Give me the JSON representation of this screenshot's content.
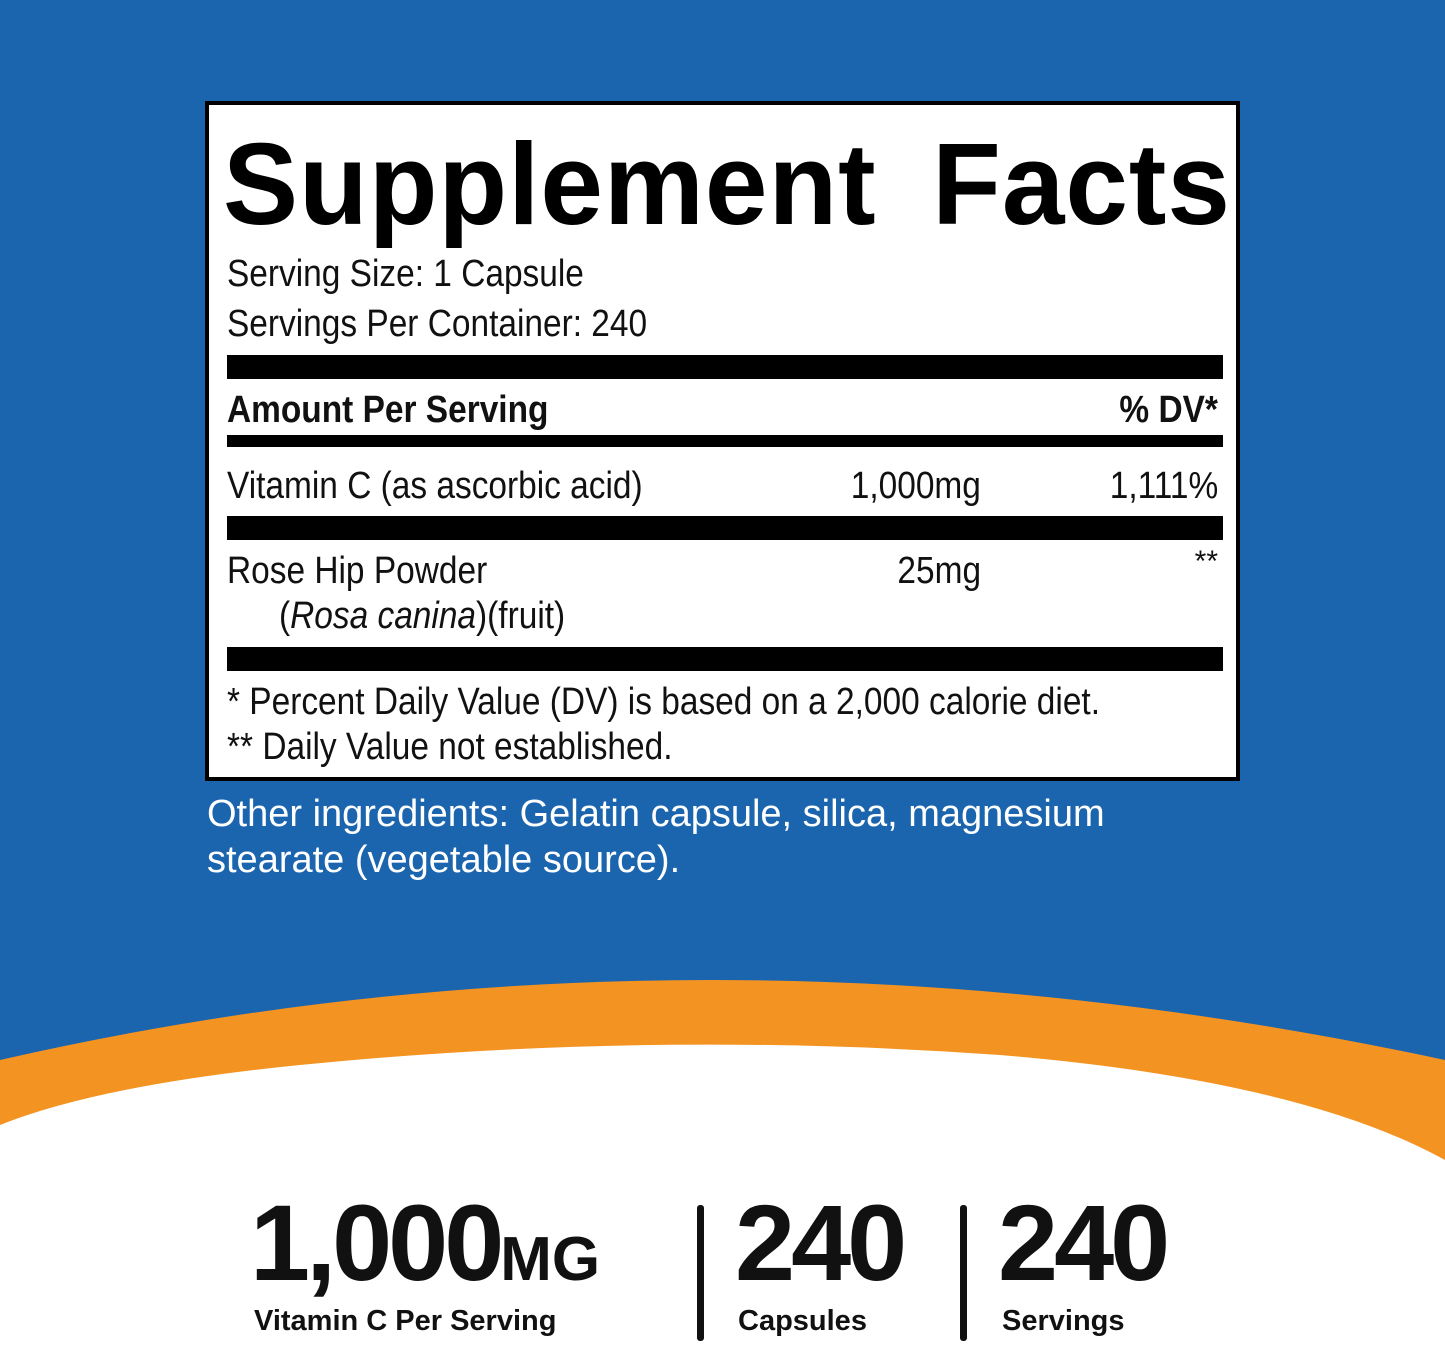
{
  "colors": {
    "background": "#1b64ae",
    "accent": "#f39322",
    "panel": "#ffffff",
    "text": "#111111"
  },
  "facts": {
    "title": "Supplement Facts",
    "serving_size": "Serving Size: 1 Capsule",
    "servings_per_container": "Servings Per Container: 240",
    "header_amount": "Amount Per Serving",
    "header_dv": "% DV*",
    "rows": [
      {
        "name": "Vitamin C (as ascorbic acid)",
        "amount": "1,000mg",
        "dv": "1,111%"
      },
      {
        "name": "Rose Hip Powder",
        "sub_open": "(",
        "sub_italic": "Rosa canina",
        "sub_close": ")(fruit)",
        "amount": "25mg",
        "dv": "**"
      }
    ],
    "footnote1": "* Percent Daily Value (DV) is based on a 2,000 calorie diet.",
    "footnote2": "** Daily Value not established."
  },
  "other_ingredients": {
    "line1": "Other ingredients: Gelatin capsule, silica, magnesium",
    "line2": "stearate (vegetable source)."
  },
  "stats": [
    {
      "value": "1,000",
      "unit": "MG",
      "label": "Vitamin C Per Serving"
    },
    {
      "value": "240",
      "label": "Capsules"
    },
    {
      "value": "240",
      "label": "Servings"
    }
  ]
}
